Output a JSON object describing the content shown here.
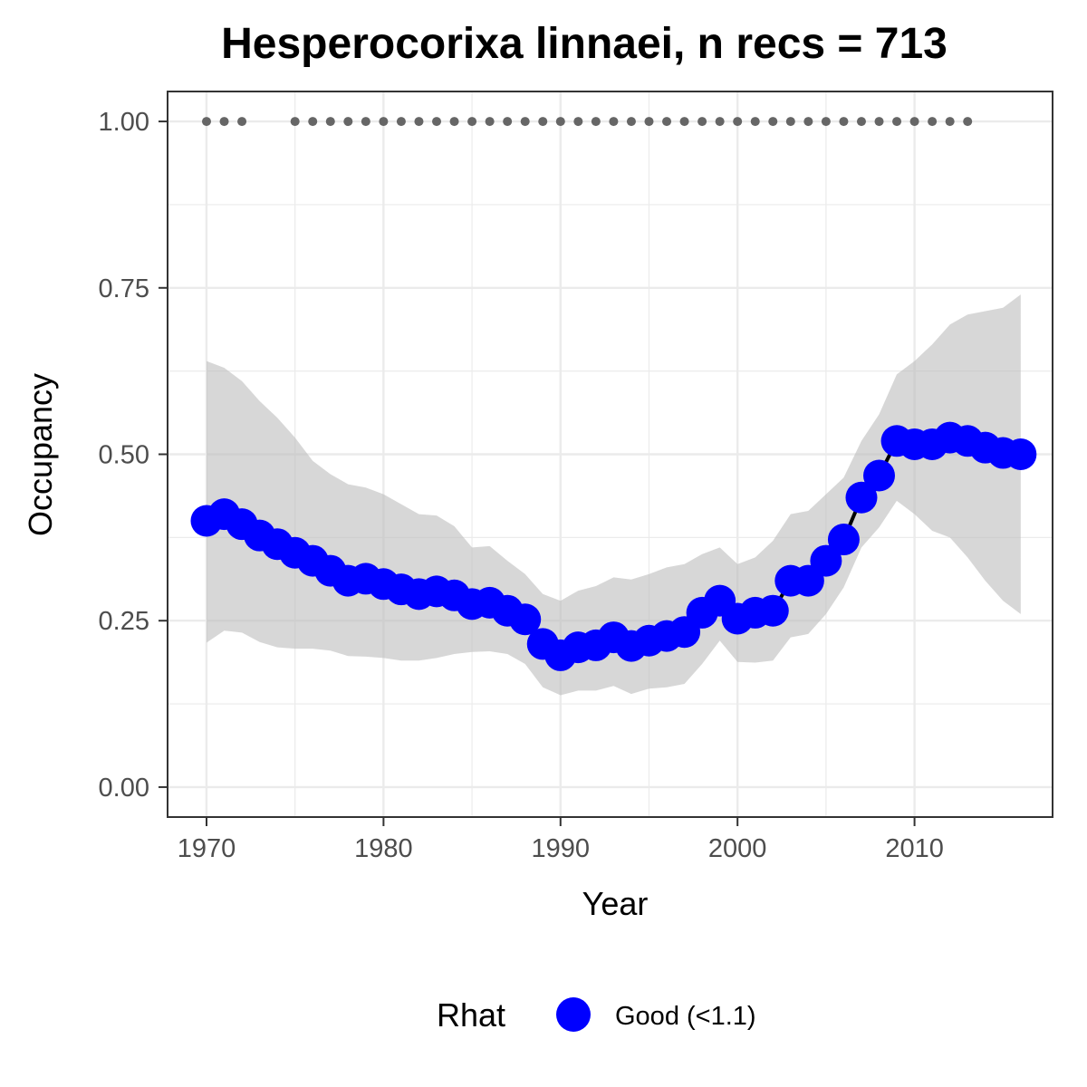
{
  "chart_data": {
    "type": "line",
    "title": "Hesperocorixa linnaei, n recs = 713",
    "xlabel": "Year",
    "ylabel": "Occupancy",
    "xlim": [
      1967.8,
      2017.8
    ],
    "ylim": [
      -0.045,
      1.045
    ],
    "x_ticks": [
      1970,
      1980,
      1990,
      2000,
      2010
    ],
    "x_tick_labels": [
      "1970",
      "1980",
      "1990",
      "2000",
      "2010"
    ],
    "y_ticks": [
      0,
      0.25,
      0.5,
      0.75,
      1.0
    ],
    "y_tick_labels": [
      "0.00",
      "0.25",
      "0.50",
      "0.75",
      "1.00"
    ],
    "grid": true,
    "legend": {
      "title": "Rhat",
      "placement": "bottom",
      "entries": [
        {
          "label": "Good (<1.1)",
          "color": "#0000ff"
        }
      ]
    },
    "colors": {
      "points": "#0000ff",
      "line": "#000000",
      "ribbon": "#bdbdbd",
      "record_markers": "#666666",
      "grid": "#ebebeb",
      "panel_border": "#333333"
    },
    "series": [
      {
        "x": [
          1970,
          1971,
          1972,
          1973,
          1974,
          1975,
          1976,
          1977,
          1978,
          1979,
          1980,
          1981,
          1982,
          1983,
          1984,
          1985,
          1986,
          1987,
          1988,
          1989,
          1990,
          1991,
          1992,
          1993,
          1994,
          1995,
          1996,
          1997,
          1998,
          1999,
          2000,
          2001,
          2002,
          2003,
          2004,
          2005,
          2006,
          2007,
          2008,
          2009,
          2010,
          2011,
          2012,
          2013,
          2014,
          2015,
          2016
        ],
        "values": [
          0.4,
          0.41,
          0.395,
          0.378,
          0.365,
          0.352,
          0.34,
          0.325,
          0.31,
          0.313,
          0.305,
          0.297,
          0.29,
          0.294,
          0.288,
          0.275,
          0.277,
          0.265,
          0.252,
          0.215,
          0.198,
          0.21,
          0.213,
          0.225,
          0.212,
          0.22,
          0.227,
          0.233,
          0.262,
          0.28,
          0.253,
          0.262,
          0.265,
          0.31,
          0.31,
          0.34,
          0.372,
          0.435,
          0.468,
          0.52,
          0.515,
          0.515,
          0.525,
          0.52,
          0.51,
          0.502,
          0.5
        ],
        "lower": [
          0.217,
          0.235,
          0.232,
          0.218,
          0.21,
          0.208,
          0.208,
          0.205,
          0.197,
          0.196,
          0.194,
          0.19,
          0.19,
          0.194,
          0.2,
          0.203,
          0.204,
          0.2,
          0.185,
          0.15,
          0.138,
          0.145,
          0.145,
          0.152,
          0.14,
          0.148,
          0.15,
          0.155,
          0.185,
          0.22,
          0.188,
          0.187,
          0.19,
          0.225,
          0.23,
          0.26,
          0.3,
          0.36,
          0.39,
          0.43,
          0.41,
          0.385,
          0.375,
          0.345,
          0.31,
          0.28,
          0.26
        ],
        "upper": [
          0.64,
          0.63,
          0.61,
          0.58,
          0.555,
          0.525,
          0.49,
          0.47,
          0.455,
          0.45,
          0.44,
          0.425,
          0.41,
          0.408,
          0.392,
          0.36,
          0.362,
          0.34,
          0.32,
          0.29,
          0.28,
          0.295,
          0.302,
          0.315,
          0.312,
          0.32,
          0.33,
          0.335,
          0.35,
          0.36,
          0.335,
          0.345,
          0.37,
          0.41,
          0.415,
          0.44,
          0.465,
          0.52,
          0.56,
          0.62,
          0.64,
          0.665,
          0.695,
          0.71,
          0.715,
          0.72,
          0.74
        ]
      }
    ],
    "record_years": [
      1970,
      1971,
      1972,
      1975,
      1976,
      1977,
      1978,
      1979,
      1980,
      1981,
      1982,
      1983,
      1984,
      1985,
      1986,
      1987,
      1988,
      1989,
      1990,
      1991,
      1992,
      1993,
      1994,
      1995,
      1996,
      1997,
      1998,
      1999,
      2000,
      2001,
      2002,
      2003,
      2004,
      2005,
      2006,
      2007,
      2008,
      2009,
      2010,
      2011,
      2012,
      2013
    ],
    "record_y": 1.0
  }
}
